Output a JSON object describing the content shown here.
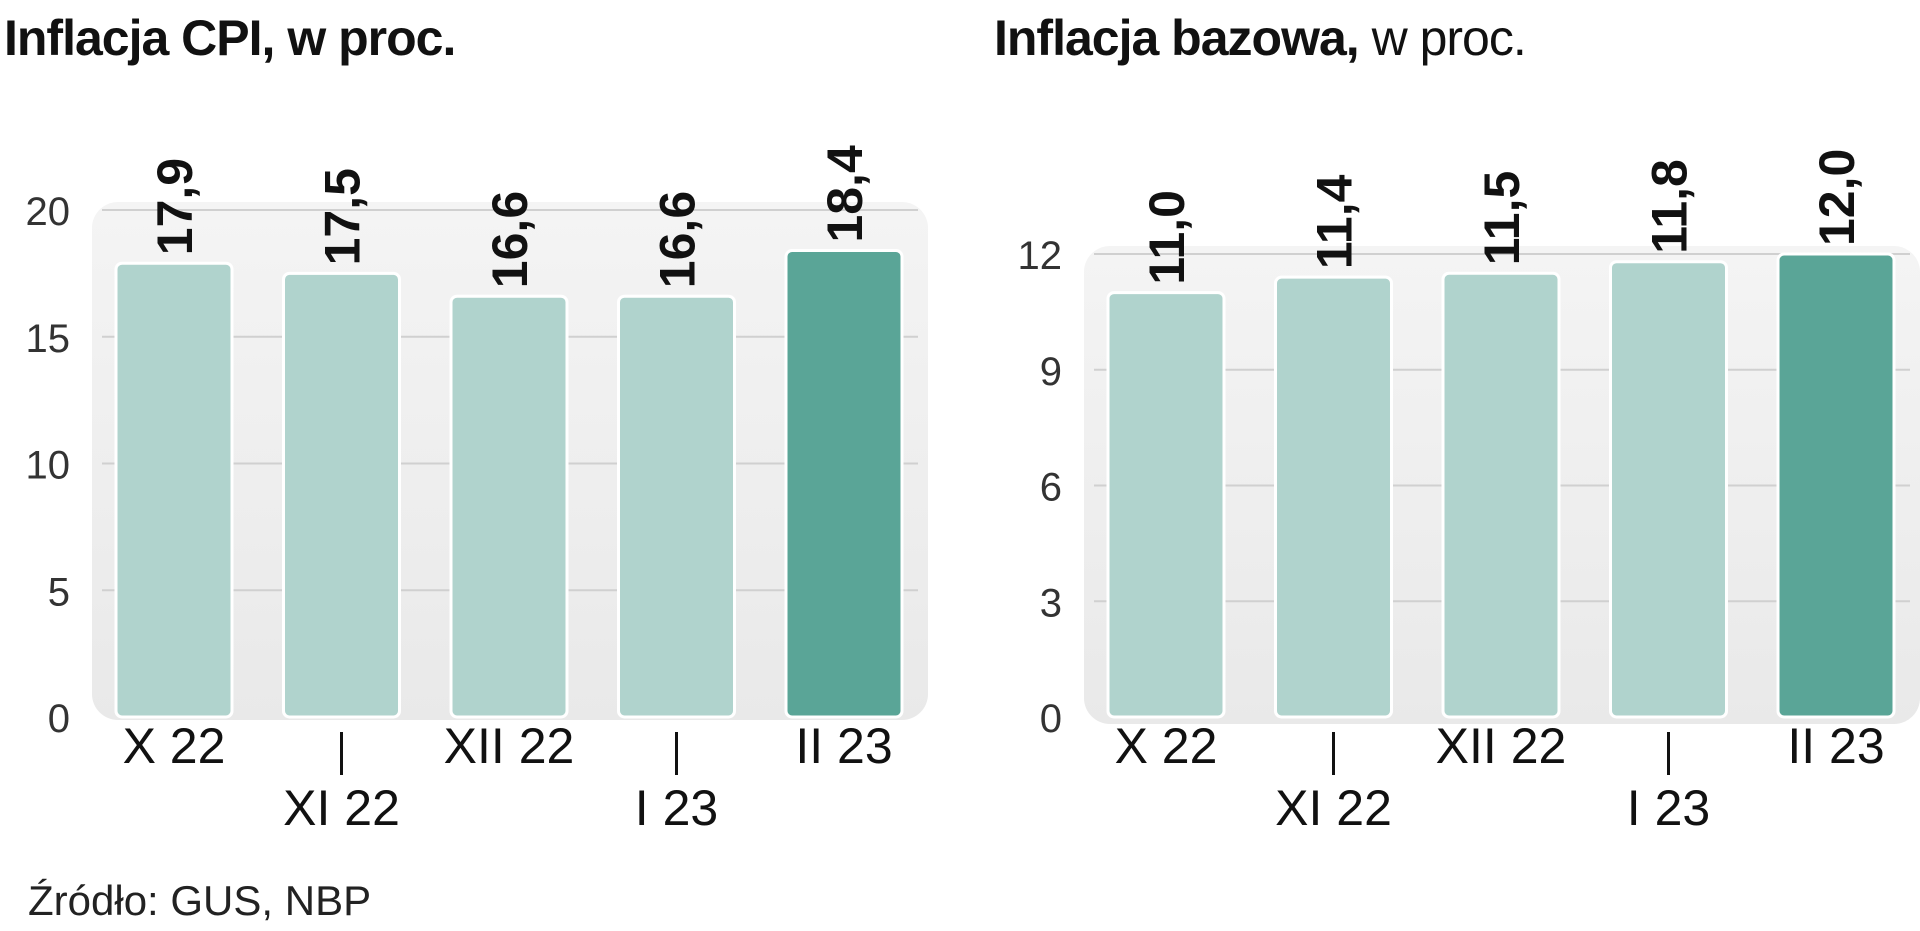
{
  "chart_data": [
    {
      "type": "bar",
      "title_bold": "Inflacja CPI, w proc.",
      "title_normal": "",
      "categories": [
        "X 22",
        "XI 22",
        "XII 22",
        "I 23",
        "II 23"
      ],
      "values": [
        17.9,
        17.5,
        16.6,
        16.6,
        18.4
      ],
      "value_labels": [
        "17,9",
        "17,5",
        "16,6",
        "16,6",
        "18,4"
      ],
      "yticks": [
        "0",
        "5",
        "10",
        "15",
        "20"
      ],
      "ylim": [
        0,
        20
      ],
      "grid": true,
      "highlight_index": 4,
      "colors": {
        "bar": "#b0d3cd",
        "highlight": "#5aa597",
        "grid": "#d0d0d0"
      }
    },
    {
      "type": "bar",
      "title_bold": "Inflacja bazowa,",
      "title_normal": " w proc.",
      "categories": [
        "X 22",
        "XI 22",
        "XII 22",
        "I 23",
        "II 23"
      ],
      "values": [
        11.0,
        11.4,
        11.5,
        11.8,
        12.0
      ],
      "value_labels": [
        "11,0",
        "11,4",
        "11,5",
        "11,8",
        "12,0"
      ],
      "yticks": [
        "0",
        "3",
        "6",
        "9",
        "12"
      ],
      "ylim": [
        0,
        12
      ],
      "grid": true,
      "highlight_index": 4,
      "colors": {
        "bar": "#b0d3cd",
        "highlight": "#5aa597",
        "grid": "#d0d0d0"
      }
    }
  ],
  "source": "Źródło: GUS, NBP"
}
